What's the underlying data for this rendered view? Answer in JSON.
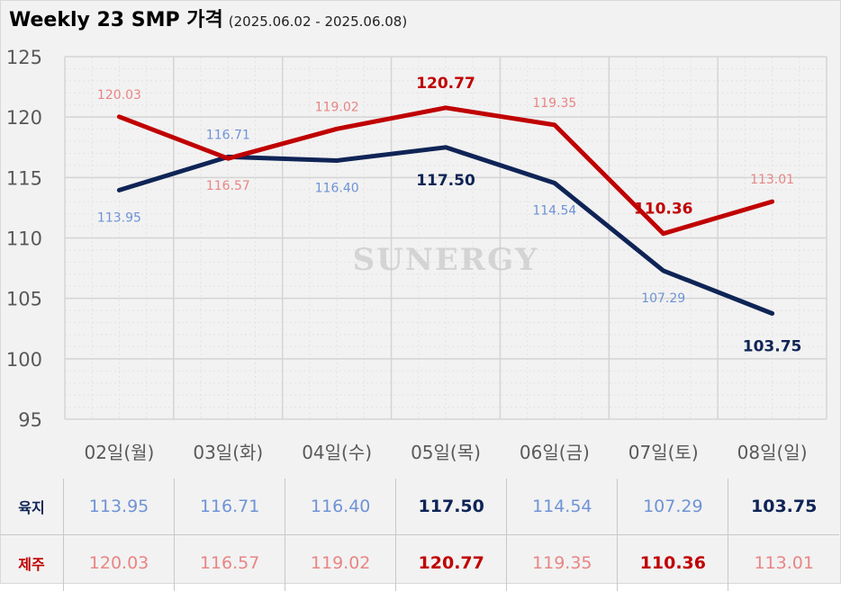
{
  "title": "Weekly 23 SMP 가격",
  "subtitle": "(2025.06.02 - 2025.06.08)",
  "watermark": "SUNERGY",
  "colors": {
    "yukji": "#0f2456",
    "yukji_light": "#6f93d6",
    "jeju": "#c00000",
    "jeju_light": "#e98585",
    "grid": "#d4d4d4",
    "background": "#f2f2f2"
  },
  "chart_data": {
    "type": "line",
    "title": "Weekly 23 SMP 가격",
    "subtitle": "(2025.06.02 - 2025.06.08)",
    "categories": [
      "02일(월)",
      "03일(화)",
      "04일(수)",
      "05일(목)",
      "06일(금)",
      "07일(토)",
      "08일(일)"
    ],
    "series": [
      {
        "name": "육지",
        "values": [
          113.95,
          116.71,
          116.4,
          117.5,
          114.54,
          107.29,
          103.75
        ],
        "labels": [
          "113.95",
          "116.71",
          "116.40",
          "117.50",
          "114.54",
          "107.29",
          "103.75"
        ],
        "highlighted": [
          false,
          false,
          false,
          true,
          false,
          false,
          true
        ]
      },
      {
        "name": "제주",
        "values": [
          120.03,
          116.57,
          119.02,
          120.77,
          119.35,
          110.36,
          113.01
        ],
        "labels": [
          "120.03",
          "116.57",
          "119.02",
          "120.77",
          "119.35",
          "110.36",
          "113.01"
        ],
        "highlighted": [
          false,
          false,
          false,
          true,
          false,
          true,
          false
        ]
      }
    ],
    "ylim": [
      95,
      125
    ],
    "yticks": [
      "95",
      "100",
      "105",
      "110",
      "115",
      "120",
      "125"
    ],
    "grid": true,
    "legend": "table-below"
  }
}
